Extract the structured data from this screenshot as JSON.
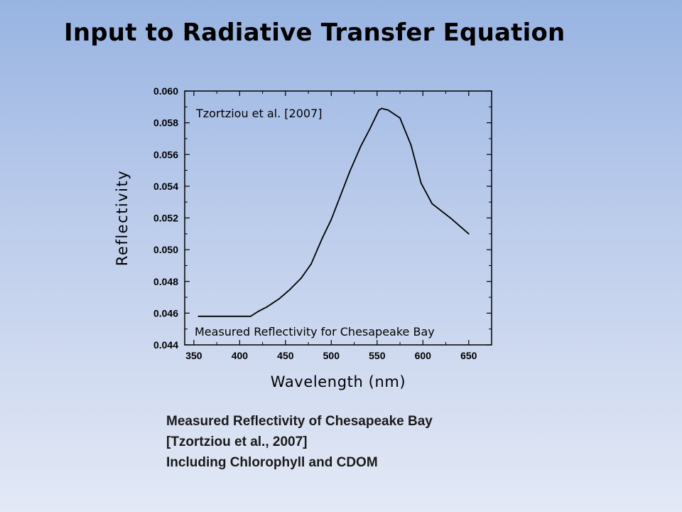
{
  "slide": {
    "title": "Input to Radiative Transfer Equation",
    "caption_lines": [
      "Measured Reflectivity of Chesapeake Bay",
      "[Tzortziou et al., 2007]",
      "Including Chlorophyll and CDOM"
    ]
  },
  "chart_data": {
    "type": "line",
    "title": "",
    "xlabel": "Wavelength (nm)",
    "ylabel": "Reflectivity",
    "xlim": [
      340,
      675
    ],
    "ylim": [
      0.044,
      0.06
    ],
    "xticks": [
      350,
      400,
      450,
      500,
      550,
      600,
      650
    ],
    "xtick_labels": [
      "350",
      "400",
      "450",
      "500",
      "550",
      "600",
      "650"
    ],
    "yticks": [
      0.044,
      0.046,
      0.048,
      0.05,
      0.052,
      0.054,
      0.056,
      0.058,
      0.06
    ],
    "ytick_labels": [
      "0.044",
      "0.046",
      "0.048",
      "0.050",
      "0.052",
      "0.054",
      "0.056",
      "0.058",
      "0.060"
    ],
    "grid": false,
    "line_color": "#000000",
    "annotations": [
      {
        "text": "Tzortziou et al. [2007]",
        "position": "top-left"
      },
      {
        "text": "Measured Reflectivity for Chesapeake Bay",
        "position": "bottom"
      }
    ],
    "series": [
      {
        "x": [
          355,
          412,
          420,
          430,
          443,
          455,
          467,
          478,
          490,
          500,
          510,
          520,
          532,
          542,
          552,
          555,
          562,
          575,
          587,
          598,
          610,
          630,
          650
        ],
        "y": [
          0.0458,
          0.0458,
          0.0461,
          0.0464,
          0.0469,
          0.0475,
          0.0482,
          0.0491,
          0.0507,
          0.0519,
          0.0534,
          0.0549,
          0.0565,
          0.0576,
          0.0588,
          0.0589,
          0.0588,
          0.0583,
          0.0566,
          0.0542,
          0.0529,
          0.052,
          0.051
        ]
      }
    ]
  }
}
